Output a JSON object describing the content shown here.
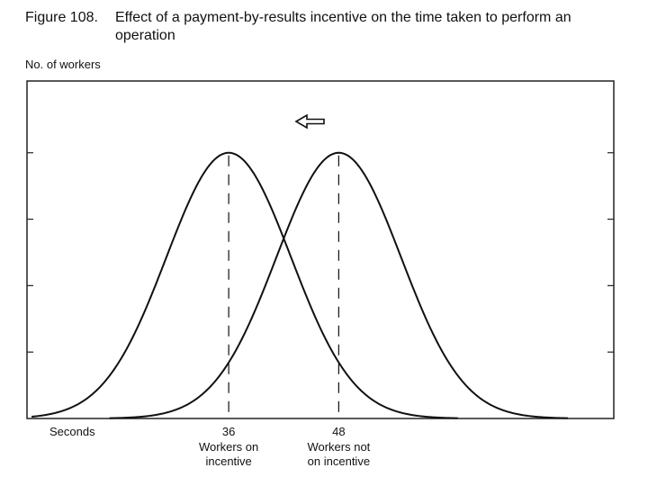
{
  "figure": {
    "number": "Figure 108.",
    "title": "Effect of a payment-by-results incentive on the time taken to perform an operation"
  },
  "chart_data": {
    "type": "line",
    "ylabel": "No. of workers",
    "xlabel": "Seconds",
    "xlim": [
      14,
      78
    ],
    "ylim": [
      0,
      1.27
    ],
    "grid": false,
    "ytick_count": 4,
    "curve_shape": "normal distribution",
    "series": [
      {
        "label": [
          "Workers on",
          "incentive"
        ],
        "mean": 36,
        "peak": 1.0
      },
      {
        "label": [
          "Workers not",
          "on incentive"
        ],
        "mean": 48,
        "peak": 1.0
      }
    ],
    "x_ticks": [
      36,
      48
    ],
    "annotations": [
      {
        "type": "arrow",
        "direction": "left",
        "meaning": "shift of distribution toward shorter time"
      }
    ],
    "line_color": "#111111"
  }
}
